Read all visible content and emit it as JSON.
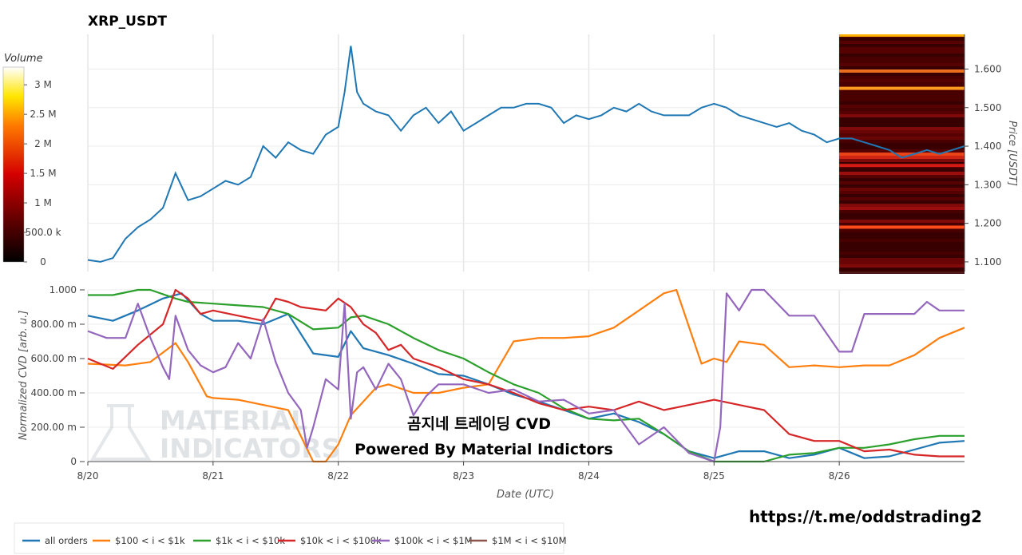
{
  "title": "XRP_USDT",
  "volume_colorbar": {
    "label": "Volume",
    "ticks": [
      "3 M",
      "2.5 M",
      "2 M",
      "1.5 M",
      "1 M",
      "500.0 k",
      "0"
    ],
    "tick_values": [
      3000000,
      2500000,
      2000000,
      1500000,
      1000000,
      500000,
      0
    ],
    "range": [
      0,
      3300000
    ]
  },
  "price_axis": {
    "label": "Price [USDT]",
    "ticks": [
      "1.600",
      "1.500",
      "1.400",
      "1.300",
      "1.200",
      "1.100"
    ],
    "tick_values": [
      1.6,
      1.5,
      1.4,
      1.3,
      1.2,
      1.1
    ]
  },
  "cvd_axis": {
    "label": "Normalized CVD [arb. u.]",
    "ticks": [
      "1.000",
      "800.00 m",
      "600.00 m",
      "400.00 m",
      "200.00 m",
      "0"
    ],
    "tick_values": [
      1.0,
      0.8,
      0.6,
      0.4,
      0.2,
      0
    ]
  },
  "x_axis": {
    "label": "Date (UTC)",
    "ticks": [
      "8/20",
      "8/21",
      "8/22",
      "8/23",
      "8/24",
      "8/25",
      "8/26"
    ],
    "tick_values": [
      0,
      1,
      2,
      3,
      4,
      5,
      6
    ]
  },
  "watermark": {
    "line1": "MATERIAL",
    "line2": "INDICATORS"
  },
  "overlay": {
    "line1": "곰지네 트레이딩 CVD",
    "line2": "Powered By Material Indictors"
  },
  "link_text": "https://t.me/oddstrading2",
  "legend": [
    {
      "label": "all orders",
      "color": "#1f77b4"
    },
    {
      "label": "$100 < i < $1k",
      "color": "#ff7f0e"
    },
    {
      "label": "$1k < i < $10k",
      "color": "#2ca02c"
    },
    {
      "label": "$10k < i < $100k",
      "color": "#d62728"
    },
    {
      "label": "$100k < i < $1M",
      "color": "#9467bd"
    },
    {
      "label": "$1M < i < $10M",
      "color": "#8c564b"
    }
  ],
  "chart_data": [
    {
      "type": "line",
      "title": "XRP_USDT",
      "xlabel": "Date (UTC)",
      "ylabel": "Price [USDT]",
      "xlim": [
        0,
        7.0
      ],
      "ylim": [
        1.075,
        1.69
      ],
      "series": [
        {
          "name": "price",
          "color": "#1f77b4",
          "x": [
            0,
            0.1,
            0.2,
            0.3,
            0.4,
            0.5,
            0.6,
            0.7,
            0.8,
            0.9,
            1.0,
            1.1,
            1.2,
            1.3,
            1.4,
            1.5,
            1.6,
            1.7,
            1.8,
            1.9,
            2.0,
            2.05,
            2.1,
            2.15,
            2.2,
            2.3,
            2.4,
            2.5,
            2.6,
            2.7,
            2.8,
            2.9,
            3.0,
            3.1,
            3.2,
            3.3,
            3.4,
            3.5,
            3.6,
            3.7,
            3.8,
            3.9,
            4.0,
            4.1,
            4.2,
            4.3,
            4.4,
            4.5,
            4.6,
            4.7,
            4.8,
            4.9,
            5.0,
            5.1,
            5.2,
            5.3,
            5.4,
            5.5,
            5.6,
            5.7,
            5.8,
            5.9,
            6.0,
            6.1,
            6.2,
            6.3,
            6.4,
            6.5,
            6.6,
            6.7,
            6.8,
            6.9,
            7.0
          ],
          "y": [
            1.105,
            1.1,
            1.11,
            1.16,
            1.19,
            1.21,
            1.24,
            1.33,
            1.26,
            1.27,
            1.29,
            1.31,
            1.3,
            1.32,
            1.4,
            1.37,
            1.41,
            1.39,
            1.38,
            1.43,
            1.45,
            1.54,
            1.66,
            1.54,
            1.51,
            1.49,
            1.48,
            1.44,
            1.48,
            1.5,
            1.46,
            1.49,
            1.44,
            1.46,
            1.48,
            1.5,
            1.5,
            1.51,
            1.51,
            1.5,
            1.46,
            1.48,
            1.47,
            1.48,
            1.5,
            1.49,
            1.51,
            1.49,
            1.48,
            1.48,
            1.48,
            1.5,
            1.51,
            1.5,
            1.48,
            1.47,
            1.46,
            1.45,
            1.46,
            1.44,
            1.43,
            1.41,
            1.42,
            1.42,
            1.41,
            1.4,
            1.39,
            1.37,
            1.38,
            1.39,
            1.38,
            1.39,
            1.4
          ]
        }
      ]
    },
    {
      "type": "line",
      "title": "",
      "xlabel": "Date (UTC)",
      "ylabel": "Normalized CVD [arb. u.]",
      "xlim": [
        0,
        7.0
      ],
      "ylim": [
        0,
        1.0
      ],
      "series": [
        {
          "name": "all orders",
          "color": "#1f77b4",
          "x": [
            0,
            0.2,
            0.4,
            0.6,
            0.75,
            0.9,
            1.0,
            1.2,
            1.4,
            1.6,
            1.8,
            2.0,
            2.1,
            2.2,
            2.4,
            2.6,
            2.8,
            3.0,
            3.2,
            3.4,
            3.6,
            3.8,
            4.0,
            4.2,
            4.4,
            4.6,
            4.8,
            5.0,
            5.2,
            5.4,
            5.6,
            5.8,
            6.0,
            6.2,
            6.4,
            6.6,
            6.8,
            7.0
          ],
          "y": [
            0.85,
            0.82,
            0.88,
            0.95,
            0.98,
            0.86,
            0.82,
            0.82,
            0.8,
            0.86,
            0.63,
            0.61,
            0.76,
            0.66,
            0.62,
            0.57,
            0.51,
            0.5,
            0.45,
            0.39,
            0.35,
            0.3,
            0.25,
            0.28,
            0.23,
            0.16,
            0.06,
            0.02,
            0.06,
            0.06,
            0.02,
            0.04,
            0.08,
            0.02,
            0.03,
            0.07,
            0.11,
            0.12
          ]
        },
        {
          "name": "$100 < i < $1k",
          "color": "#ff7f0e",
          "x": [
            0,
            0.3,
            0.5,
            0.7,
            0.8,
            0.95,
            1.0,
            1.2,
            1.4,
            1.6,
            1.8,
            1.9,
            2.0,
            2.1,
            2.3,
            2.4,
            2.6,
            2.8,
            3.0,
            3.2,
            3.4,
            3.6,
            3.8,
            4.0,
            4.2,
            4.4,
            4.6,
            4.7,
            4.9,
            5.0,
            5.1,
            5.2,
            5.4,
            5.6,
            5.8,
            6.0,
            6.2,
            6.4,
            6.6,
            6.8,
            7.0
          ],
          "y": [
            0.57,
            0.56,
            0.58,
            0.69,
            0.58,
            0.38,
            0.37,
            0.36,
            0.33,
            0.3,
            0.0,
            0.0,
            0.1,
            0.27,
            0.43,
            0.45,
            0.4,
            0.4,
            0.43,
            0.45,
            0.7,
            0.72,
            0.72,
            0.73,
            0.78,
            0.88,
            0.98,
            1.0,
            0.57,
            0.6,
            0.58,
            0.7,
            0.68,
            0.55,
            0.56,
            0.55,
            0.56,
            0.56,
            0.62,
            0.72,
            0.78
          ]
        },
        {
          "name": "$1k < i < $10k",
          "color": "#2ca02c",
          "x": [
            0,
            0.2,
            0.4,
            0.5,
            0.7,
            0.8,
            1.0,
            1.2,
            1.4,
            1.6,
            1.8,
            2.0,
            2.1,
            2.2,
            2.4,
            2.6,
            2.8,
            3.0,
            3.2,
            3.4,
            3.6,
            3.8,
            4.0,
            4.2,
            4.4,
            4.6,
            4.8,
            5.0,
            5.2,
            5.4,
            5.6,
            5.8,
            6.0,
            6.2,
            6.4,
            6.6,
            6.8,
            7.0
          ],
          "y": [
            0.97,
            0.97,
            1.0,
            1.0,
            0.95,
            0.93,
            0.92,
            0.91,
            0.9,
            0.86,
            0.77,
            0.78,
            0.84,
            0.85,
            0.8,
            0.72,
            0.65,
            0.6,
            0.52,
            0.45,
            0.4,
            0.31,
            0.25,
            0.24,
            0.25,
            0.16,
            0.06,
            0.0,
            0.0,
            0.0,
            0.04,
            0.05,
            0.08,
            0.08,
            0.1,
            0.13,
            0.15,
            0.15
          ]
        },
        {
          "name": "$10k < i < $100k",
          "color": "#d62728",
          "x": [
            0,
            0.2,
            0.4,
            0.6,
            0.7,
            0.8,
            0.9,
            1.0,
            1.2,
            1.4,
            1.5,
            1.6,
            1.7,
            1.9,
            2.0,
            2.1,
            2.2,
            2.3,
            2.4,
            2.5,
            2.6,
            2.8,
            3.0,
            3.2,
            3.4,
            3.6,
            3.8,
            4.0,
            4.2,
            4.4,
            4.6,
            4.8,
            5.0,
            5.2,
            5.4,
            5.6,
            5.8,
            6.0,
            6.2,
            6.4,
            6.6,
            6.8,
            7.0
          ],
          "y": [
            0.6,
            0.54,
            0.68,
            0.8,
            1.0,
            0.95,
            0.86,
            0.88,
            0.85,
            0.82,
            0.95,
            0.93,
            0.9,
            0.88,
            0.95,
            0.9,
            0.8,
            0.75,
            0.65,
            0.68,
            0.6,
            0.55,
            0.48,
            0.45,
            0.4,
            0.34,
            0.3,
            0.32,
            0.3,
            0.35,
            0.3,
            0.33,
            0.36,
            0.33,
            0.3,
            0.16,
            0.12,
            0.12,
            0.06,
            0.07,
            0.04,
            0.03,
            0.03
          ]
        },
        {
          "name": "$100k < i < $1M",
          "color": "#9467bd",
          "x": [
            0,
            0.15,
            0.3,
            0.4,
            0.5,
            0.6,
            0.65,
            0.7,
            0.8,
            0.9,
            1.0,
            1.1,
            1.2,
            1.3,
            1.4,
            1.5,
            1.6,
            1.7,
            1.75,
            1.8,
            1.9,
            2.0,
            2.05,
            2.1,
            2.15,
            2.2,
            2.3,
            2.4,
            2.5,
            2.6,
            2.7,
            2.8,
            3.0,
            3.2,
            3.4,
            3.6,
            3.8,
            4.0,
            4.2,
            4.4,
            4.6,
            4.8,
            5.0,
            5.05,
            5.1,
            5.2,
            5.3,
            5.4,
            5.6,
            5.8,
            6.0,
            6.1,
            6.2,
            6.4,
            6.6,
            6.7,
            6.8,
            7.0
          ],
          "y": [
            0.76,
            0.72,
            0.72,
            0.92,
            0.72,
            0.55,
            0.48,
            0.85,
            0.65,
            0.56,
            0.52,
            0.55,
            0.69,
            0.6,
            0.83,
            0.58,
            0.4,
            0.3,
            0.08,
            0.2,
            0.48,
            0.42,
            0.92,
            0.25,
            0.52,
            0.55,
            0.42,
            0.57,
            0.48,
            0.27,
            0.38,
            0.45,
            0.45,
            0.4,
            0.42,
            0.35,
            0.36,
            0.28,
            0.3,
            0.1,
            0.2,
            0.05,
            0.0,
            0.2,
            0.98,
            0.88,
            1.0,
            1.0,
            0.85,
            0.85,
            0.64,
            0.64,
            0.86,
            0.86,
            0.86,
            0.93,
            0.88,
            0.88
          ]
        },
        {
          "name": "$1M < i < $10M",
          "color": "#8c564b",
          "x": [],
          "y": []
        }
      ]
    }
  ]
}
